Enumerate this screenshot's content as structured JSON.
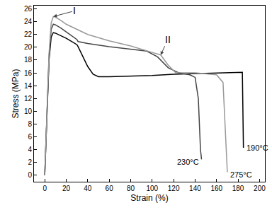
{
  "chart_data": {
    "type": "line",
    "x_label": "Strain (%)",
    "y_label": "Stress (MPa)",
    "xlim": [
      -10,
      205
    ],
    "ylim": [
      -1,
      26.5
    ],
    "xticks": [
      0,
      20,
      40,
      60,
      80,
      100,
      120,
      140,
      160,
      180,
      200
    ],
    "yticks": [
      0,
      2,
      4,
      6,
      8,
      10,
      12,
      14,
      16,
      18,
      20,
      22,
      24,
      26
    ],
    "grid": false,
    "series": [
      {
        "name": "190°C",
        "color": "#000000",
        "x": [
          0,
          2,
          4,
          6,
          8,
          10,
          15,
          20,
          25,
          30,
          31,
          35,
          40,
          45,
          50,
          60,
          80,
          100,
          120,
          140,
          160,
          184,
          185
        ],
        "values": [
          0,
          10,
          18,
          21.6,
          22.3,
          22.2,
          21.8,
          21.4,
          20.9,
          20.4,
          20.1,
          18.8,
          17.0,
          15.8,
          15.4,
          15.4,
          15.5,
          15.6,
          15.8,
          15.9,
          16.0,
          16.1,
          4.3
        ]
      },
      {
        "name": "230°C",
        "color": "#444444",
        "x": [
          0,
          2,
          4,
          6,
          8,
          10,
          15,
          20,
          25,
          30,
          31,
          40,
          60,
          80,
          95,
          105,
          115,
          125,
          135,
          140,
          143,
          145,
          146
        ],
        "values": [
          0,
          10,
          18.5,
          22.8,
          23.6,
          23.5,
          23.0,
          22.4,
          21.8,
          21.2,
          20.9,
          20.6,
          20.1,
          19.7,
          19.4,
          18.5,
          16.8,
          16.0,
          15.7,
          15.3,
          12.0,
          4.0,
          2.5
        ]
      },
      {
        "name": "275°C",
        "color": "#999999",
        "x": [
          0,
          2,
          4,
          6,
          8,
          10,
          15,
          20,
          30,
          40,
          60,
          80,
          100,
          108,
          115,
          122,
          140,
          160,
          166,
          168,
          170
        ],
        "values": [
          0,
          10,
          19,
          23.8,
          24.8,
          24.7,
          24.2,
          23.6,
          22.8,
          22.0,
          21.0,
          20.2,
          19.2,
          18.8,
          17.2,
          16.0,
          16.0,
          15.7,
          14.5,
          8.0,
          0.5
        ]
      }
    ],
    "annotations": [
      {
        "text": "I",
        "x": 8,
        "y": 24.8
      },
      {
        "text": "II",
        "x": 108,
        "y": 18.8
      }
    ]
  }
}
